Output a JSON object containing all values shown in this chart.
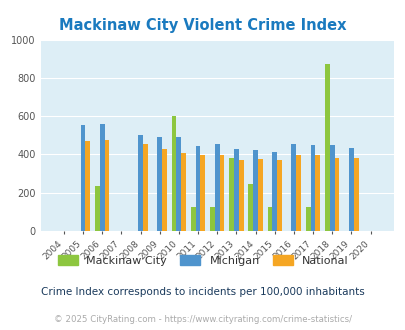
{
  "title": "Mackinaw City Violent Crime Index",
  "subtitle": "Crime Index corresponds to incidents per 100,000 inhabitants",
  "footer": "© 2025 CityRating.com - https://www.cityrating.com/crime-statistics/",
  "years": [
    2004,
    2005,
    2006,
    2007,
    2008,
    2009,
    2010,
    2011,
    2012,
    2013,
    2014,
    2015,
    2016,
    2017,
    2018,
    2019,
    2020
  ],
  "mackinaw": [
    0,
    0,
    233,
    0,
    0,
    0,
    603,
    125,
    125,
    380,
    247,
    127,
    0,
    127,
    873,
    0,
    0
  ],
  "michigan": [
    0,
    552,
    560,
    0,
    500,
    493,
    490,
    443,
    457,
    430,
    422,
    415,
    455,
    450,
    450,
    433,
    0
  ],
  "national": [
    0,
    469,
    474,
    0,
    457,
    431,
    407,
    395,
    396,
    370,
    375,
    373,
    395,
    395,
    382,
    381,
    0
  ],
  "color_mackinaw": "#8dc63f",
  "color_michigan": "#4f94cd",
  "color_national": "#f5a623",
  "ylim": [
    0,
    1000
  ],
  "yticks": [
    0,
    200,
    400,
    600,
    800,
    1000
  ],
  "bg_color": "#ddeef6",
  "title_color": "#1a7abf",
  "subtitle_color": "#1a3a5c",
  "footer_color": "#aaaaaa",
  "bar_width": 0.25
}
